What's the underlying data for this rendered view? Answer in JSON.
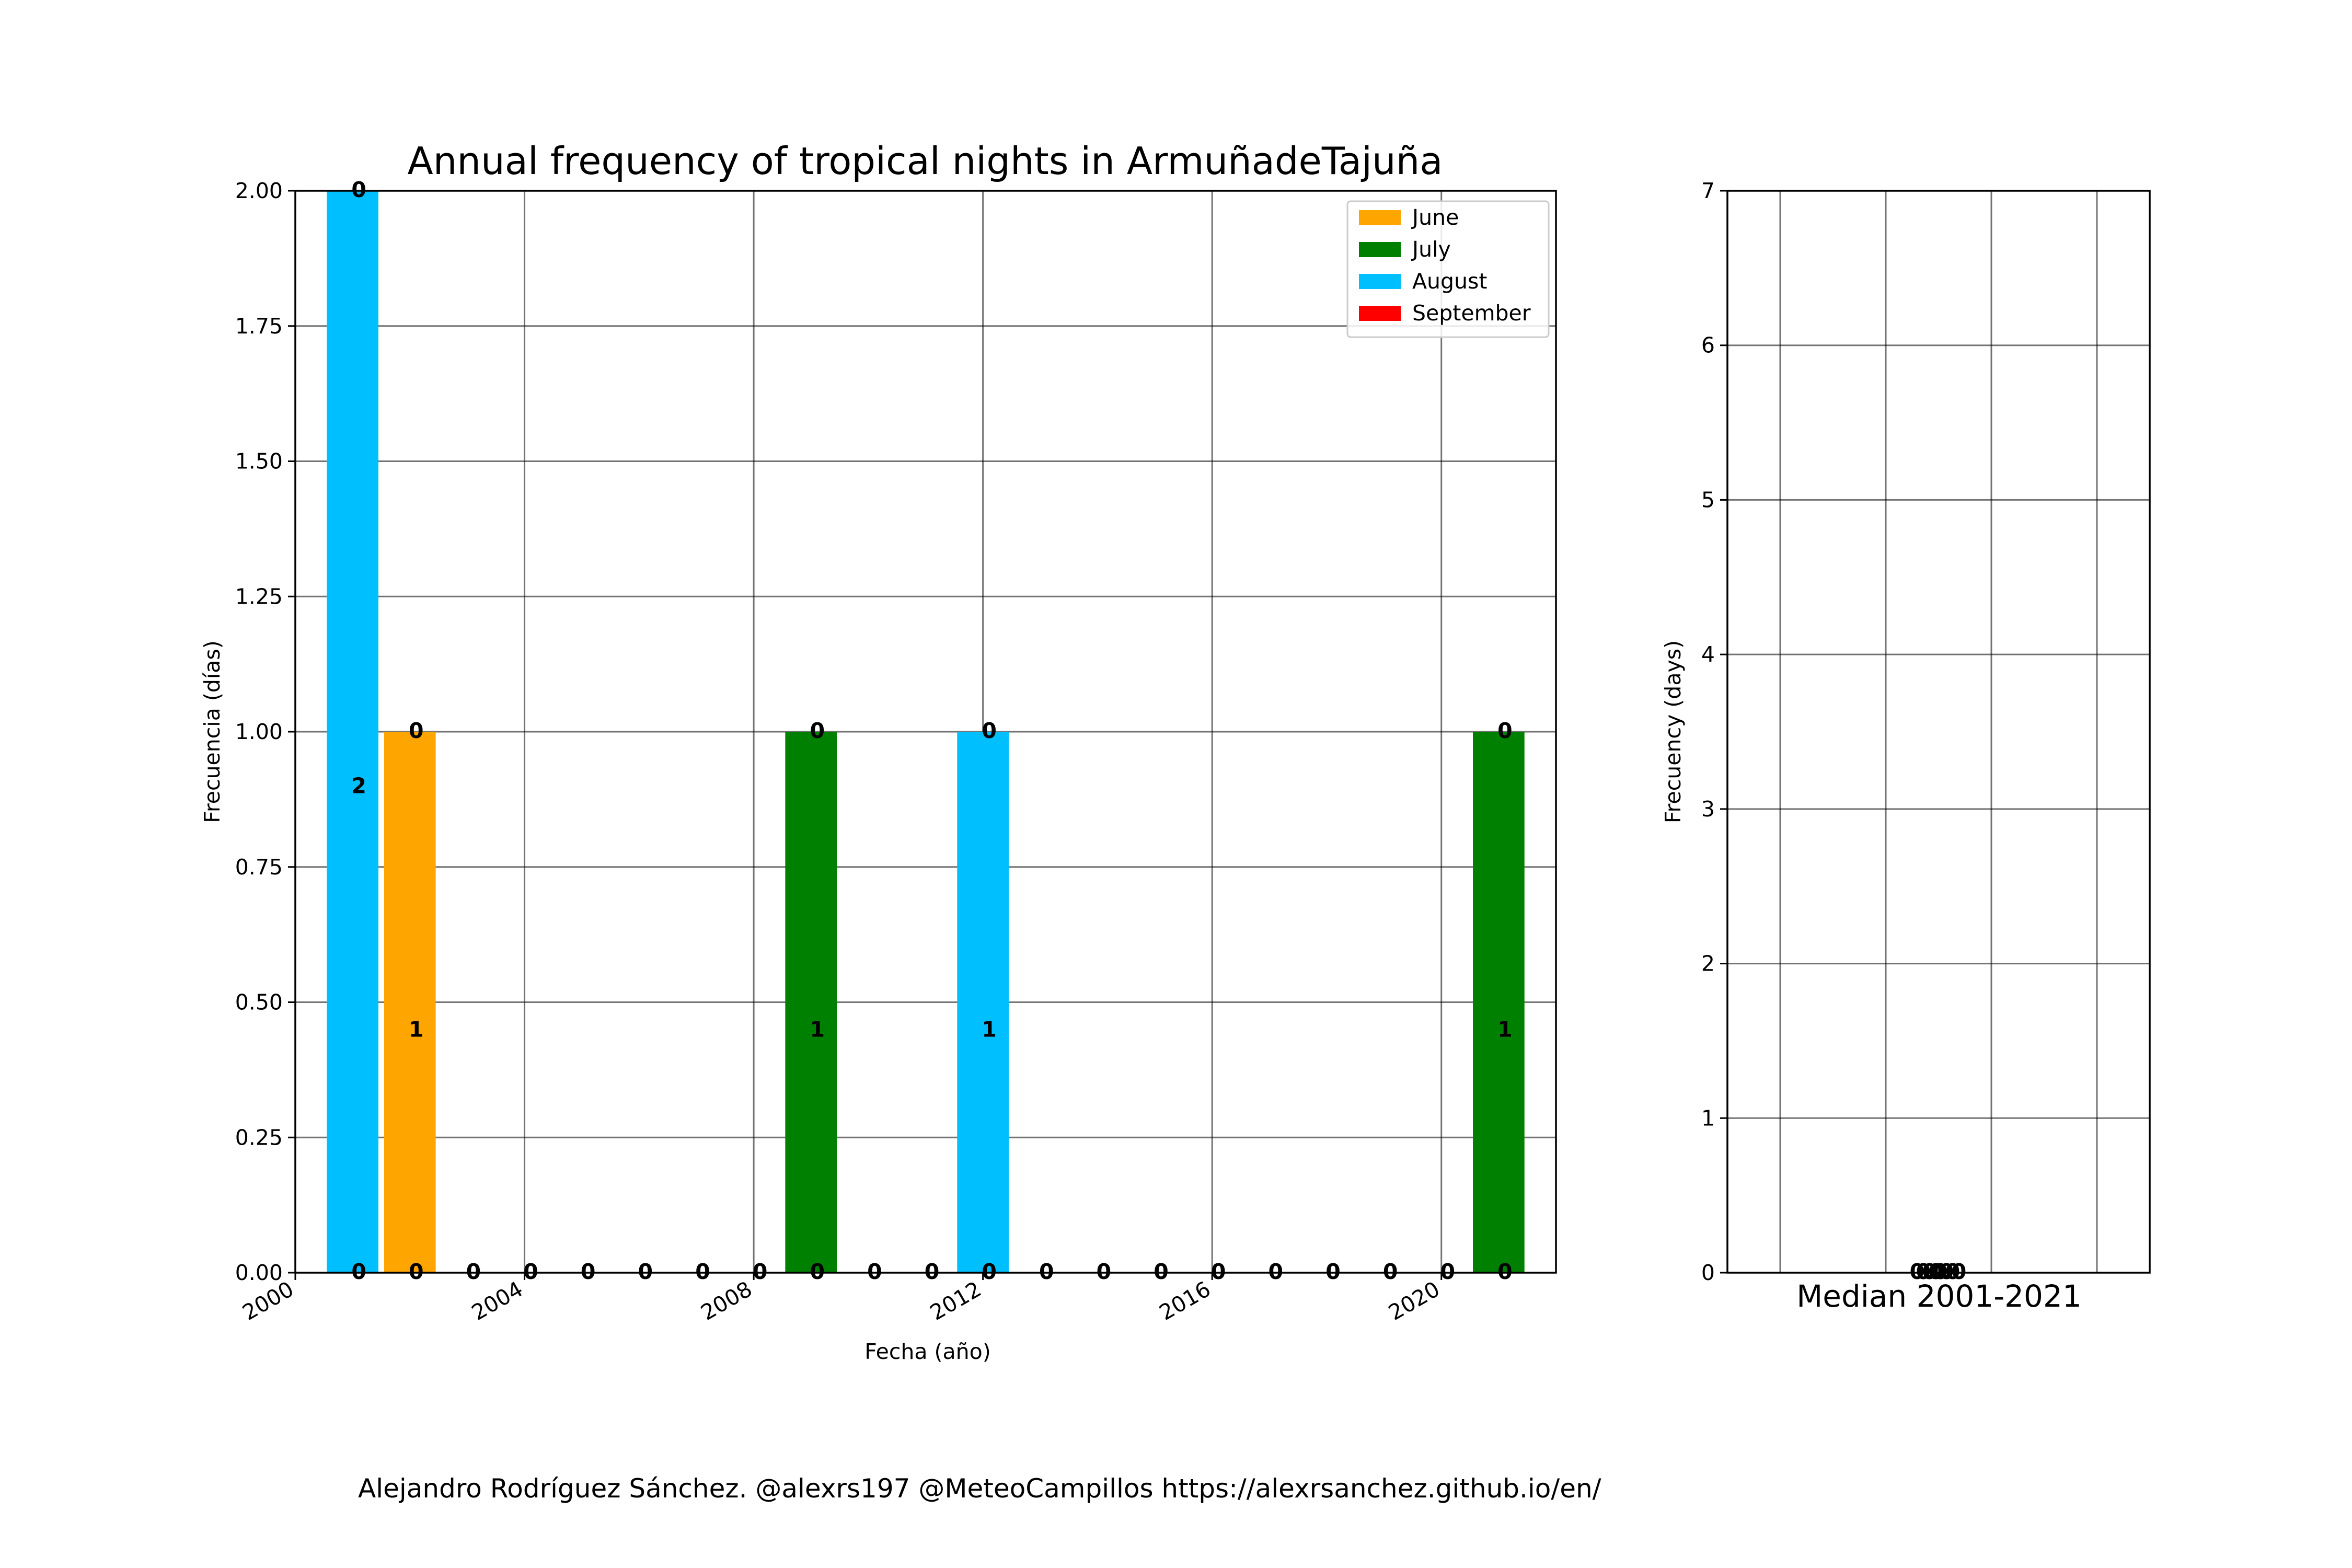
{
  "title": "Annual frequency of tropical nights in ArmuñadeTajuña",
  "footer": "Alejandro Rodríguez Sánchez. @alexrs197 @MeteoCampillos   https://alexrsanchez.github.io/en/",
  "colors": {
    "June": "#FFA500",
    "July": "#008000",
    "August": "#00BFFF",
    "September": "#FF0000"
  },
  "chart_data": [
    {
      "type": "bar",
      "stacked": true,
      "xlabel": "Fecha (año)",
      "ylabel": "Frecuencia (días)",
      "xlim": [
        2000,
        2022
      ],
      "ylim": [
        0,
        2
      ],
      "xticks": [
        "2000",
        "2004",
        "2008",
        "2012",
        "2016",
        "2020"
      ],
      "yticks": [
        "0.00",
        "0.25",
        "0.50",
        "0.75",
        "1.00",
        "1.25",
        "1.50",
        "1.75",
        "2.00"
      ],
      "grid": true,
      "legend_position": "top-right",
      "categories": [
        2001,
        2002,
        2003,
        2004,
        2005,
        2006,
        2007,
        2008,
        2009,
        2010,
        2011,
        2012,
        2013,
        2014,
        2015,
        2016,
        2017,
        2018,
        2019,
        2020,
        2021
      ],
      "series": [
        {
          "name": "June",
          "values": [
            0,
            1,
            0,
            0,
            0,
            0,
            0,
            0,
            0,
            0,
            0,
            0,
            0,
            0,
            0,
            0,
            0,
            0,
            0,
            0,
            0
          ]
        },
        {
          "name": "July",
          "values": [
            0,
            0,
            0,
            0,
            0,
            0,
            0,
            0,
            1,
            0,
            0,
            0,
            0,
            0,
            0,
            0,
            0,
            0,
            0,
            0,
            1
          ]
        },
        {
          "name": "August",
          "values": [
            2,
            0,
            0,
            0,
            0,
            0,
            0,
            0,
            0,
            0,
            0,
            1,
            0,
            0,
            0,
            0,
            0,
            0,
            0,
            0,
            0
          ]
        },
        {
          "name": "September",
          "values": [
            0,
            0,
            0,
            0,
            0,
            0,
            0,
            0,
            0,
            0,
            0,
            0,
            0,
            0,
            0,
            0,
            0,
            0,
            0,
            0,
            0
          ]
        }
      ]
    },
    {
      "type": "bar",
      "stacked": true,
      "xlabel": "Median 2001-2021",
      "ylabel": "Frecuency (days)",
      "ylim": [
        0,
        7
      ],
      "yticks": [
        "0",
        "1",
        "2",
        "3",
        "4",
        "5",
        "6",
        "7"
      ],
      "grid": true,
      "categories": [
        "June",
        "July",
        "August",
        "September"
      ],
      "values": [
        0,
        0,
        0,
        0
      ],
      "data_labels": [
        "0.0",
        "0.0",
        "0.0",
        "0.0"
      ]
    }
  ]
}
